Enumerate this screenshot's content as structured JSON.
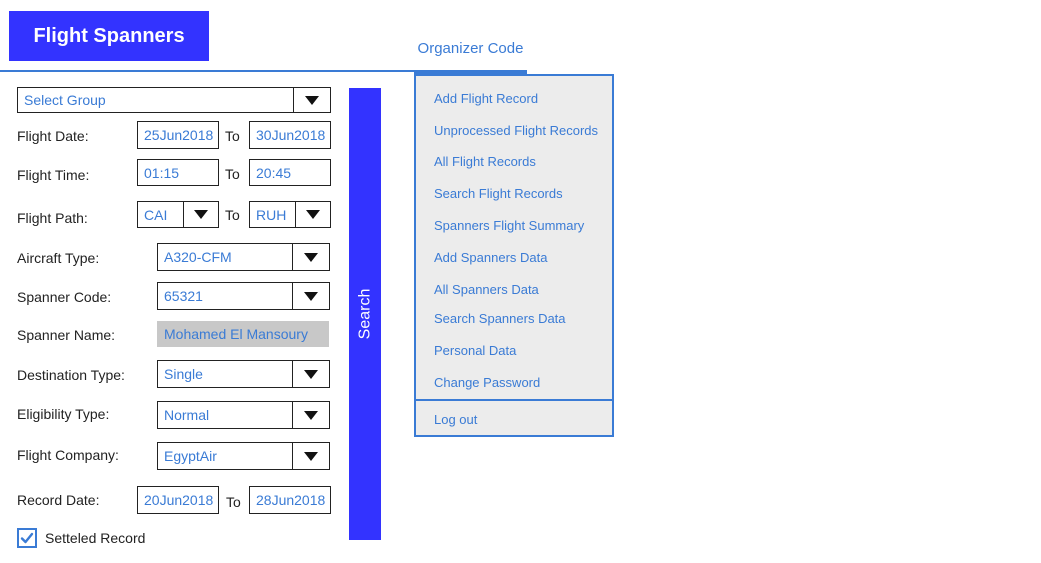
{
  "header": {
    "app_title": "Flight Spanners",
    "org_tab": "Organizer Code"
  },
  "form": {
    "group_select": "Select Group",
    "flight_date": {
      "label": "Flight Date:",
      "from": "25Jun2018",
      "to_label": "To",
      "to": "30Jun2018"
    },
    "flight_time": {
      "label": "Flight Time:",
      "from": "01:15",
      "to_label": "To",
      "to": "20:45"
    },
    "flight_path": {
      "label": "Flight Path:",
      "from": "CAI",
      "to_label": "To",
      "to": "RUH"
    },
    "aircraft_type": {
      "label": "Aircraft Type:",
      "value": "A320-CFM"
    },
    "spanner_code": {
      "label": "Spanner Code:",
      "value": "65321"
    },
    "spanner_name": {
      "label": "Spanner Name:",
      "value": "Mohamed El Mansoury"
    },
    "destination_type": {
      "label": "Destination Type:",
      "value": "Single"
    },
    "eligibility_type": {
      "label": "Eligibility Type:",
      "value": "Normal"
    },
    "flight_company": {
      "label": "Flight Company:",
      "value": "EgyptAir"
    },
    "record_date": {
      "label": "Record Date:",
      "from": "20Jun2018",
      "to_label": "To",
      "to": "28Jun2018"
    },
    "settled_record": {
      "label": "Setteled Record",
      "checked": true
    },
    "search_label": "Search"
  },
  "menu": {
    "items": [
      "Add Flight Record",
      "Unprocessed Flight Records",
      "All Flight Records",
      "Search Flight Records",
      "Spanners Flight Summary",
      "Add Spanners Data",
      "All Spanners Data",
      "Search Spanners Data",
      "Personal Data",
      "Change Password"
    ],
    "logout": "Log out"
  },
  "colors": {
    "brand": "#3333ff",
    "accent": "#3a7bd5",
    "menu_bg": "#ececec",
    "disabled_bg": "#c8c8c8"
  }
}
